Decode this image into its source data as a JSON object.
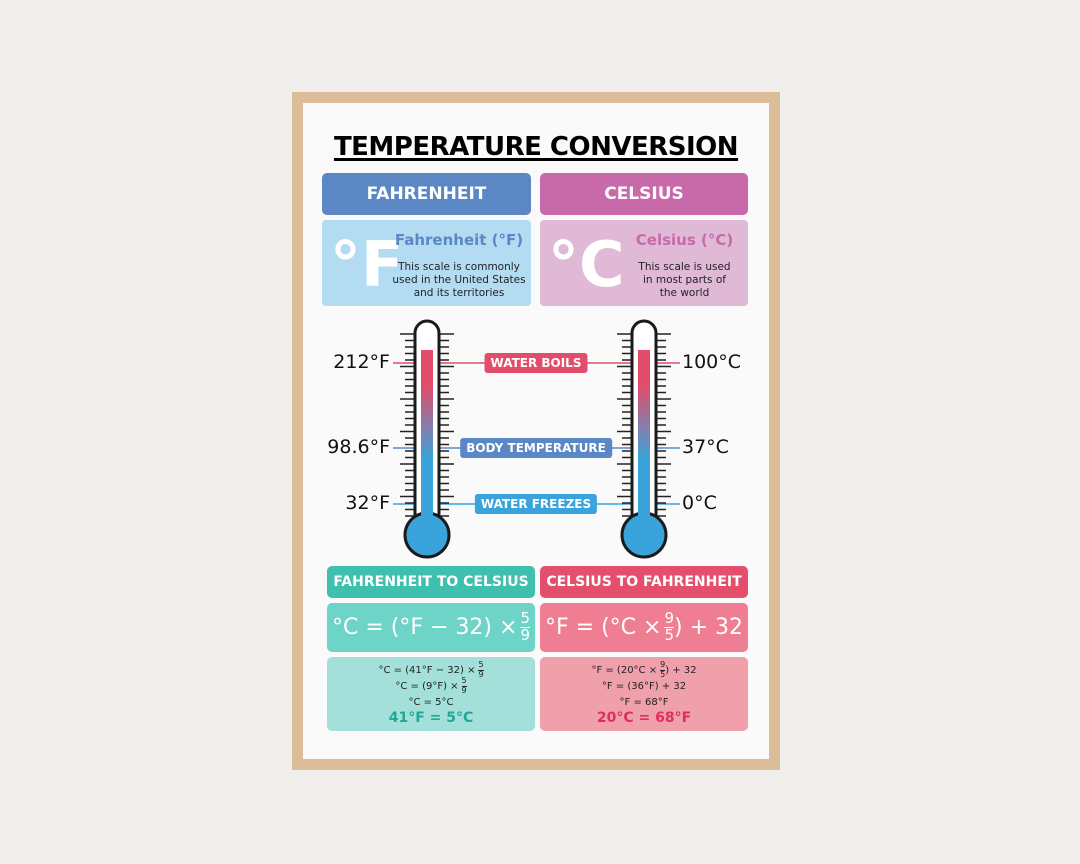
{
  "title": "TEMPERATURE CONVERSION",
  "fahrenheit": {
    "header": "FAHRENHEIT",
    "symbol": "°F",
    "name": "Fahrenheit (°F)",
    "description": [
      "This scale is commonly",
      "used in the United States",
      "and its territories"
    ]
  },
  "celsius": {
    "header": "CELSIUS",
    "symbol": "°C",
    "name": "Celsius (°C)",
    "description": [
      "This scale is used",
      "in most parts of",
      "the world"
    ]
  },
  "thermometer": {
    "fahrenheit_labels": [
      "212°F",
      "98.6°F",
      "32°F"
    ],
    "celsius_labels": [
      "100°C",
      "37°C",
      "0°C"
    ],
    "points": [
      "WATER BOILS",
      "BODY TEMPERATURE",
      "WATER FREEZES"
    ]
  },
  "f_to_c": {
    "header": "FAHRENHEIT TO CELSIUS",
    "formula": {
      "text": "°C = (°F − 32) ×",
      "num": "5",
      "den": "9"
    },
    "example": [
      {
        "text": "°C = (41°F − 32) ×",
        "num": "5",
        "den": "9"
      },
      {
        "text": "°C = (9°F) ×",
        "num": "5",
        "den": "9"
      },
      {
        "text": "°C = 5°C"
      }
    ],
    "result": "41°F = 5°C"
  },
  "c_to_f": {
    "header": "CELSIUS TO FAHRENHEIT",
    "formula": {
      "text": "°F = (°C ×",
      "num": "9",
      "den": "5",
      "after": ") + 32"
    },
    "example": [
      {
        "text": "°F = (20°C ×",
        "num": "9",
        "den": "5",
        "after": ") + 32"
      },
      {
        "text": "°F = (36°F) + 32"
      },
      {
        "text": "°F = 68°F"
      }
    ],
    "result": "20°C = 68°F"
  }
}
